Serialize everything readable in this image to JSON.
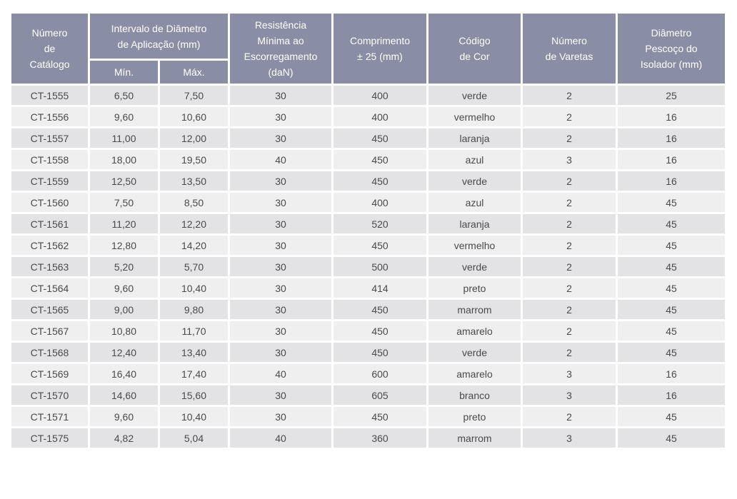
{
  "table": {
    "header": [
      "Número\nde\nCatálogo",
      "Intervalo de Diâmetro\nde  Aplicação (mm)",
      "Resistência\nMínima ao\nEscorregamento\n(daN)",
      "Comprimento\n± 25 (mm)",
      "Código\nde Cor",
      "Número\nde Varetas",
      "Diâmetro\nPescoço do\nIsolador (mm)"
    ],
    "subheader": [
      "Mín.",
      "Máx."
    ],
    "rows": [
      [
        "CT-1555",
        "6,50",
        "7,50",
        "30",
        "400",
        "verde",
        "2",
        "25"
      ],
      [
        "CT-1556",
        "9,60",
        "10,60",
        "30",
        "400",
        "vermelho",
        "2",
        "16"
      ],
      [
        "CT-1557",
        "11,00",
        "12,00",
        "30",
        "450",
        "laranja",
        "2",
        "16"
      ],
      [
        "CT-1558",
        "18,00",
        "19,50",
        "40",
        "450",
        "azul",
        "3",
        "16"
      ],
      [
        "CT-1559",
        "12,50",
        "13,50",
        "30",
        "450",
        "verde",
        "2",
        "16"
      ],
      [
        "CT-1560",
        "7,50",
        "8,50",
        "30",
        "400",
        "azul",
        "2",
        "45"
      ],
      [
        "CT-1561",
        "11,20",
        "12,20",
        "30",
        "520",
        "laranja",
        "2",
        "45"
      ],
      [
        "CT-1562",
        "12,80",
        "14,20",
        "30",
        "450",
        "vermelho",
        "2",
        "45"
      ],
      [
        "CT-1563",
        "5,20",
        "5,70",
        "30",
        "500",
        "verde",
        "2",
        "45"
      ],
      [
        "CT-1564",
        "9,60",
        "10,40",
        "30",
        "414",
        "preto",
        "2",
        "45"
      ],
      [
        "CT-1565",
        "9,00",
        "9,80",
        "30",
        "450",
        "marrom",
        "2",
        "45"
      ],
      [
        "CT-1567",
        "10,80",
        "11,70",
        "30",
        "450",
        "amarelo",
        "2",
        "45"
      ],
      [
        "CT-1568",
        "12,40",
        "13,40",
        "30",
        "450",
        "verde",
        "2",
        "45"
      ],
      [
        "CT-1569",
        "16,40",
        "17,40",
        "40",
        "600",
        "amarelo",
        "3",
        "16"
      ],
      [
        "CT-1570",
        "14,60",
        "15,60",
        "30",
        "605",
        "branco",
        "3",
        "16"
      ],
      [
        "CT-1571",
        "9,60",
        "10,40",
        "30",
        "450",
        "preto",
        "2",
        "45"
      ],
      [
        "CT-1575",
        "4,82",
        "5,04",
        "40",
        "360",
        "marrom",
        "3",
        "45"
      ]
    ]
  }
}
